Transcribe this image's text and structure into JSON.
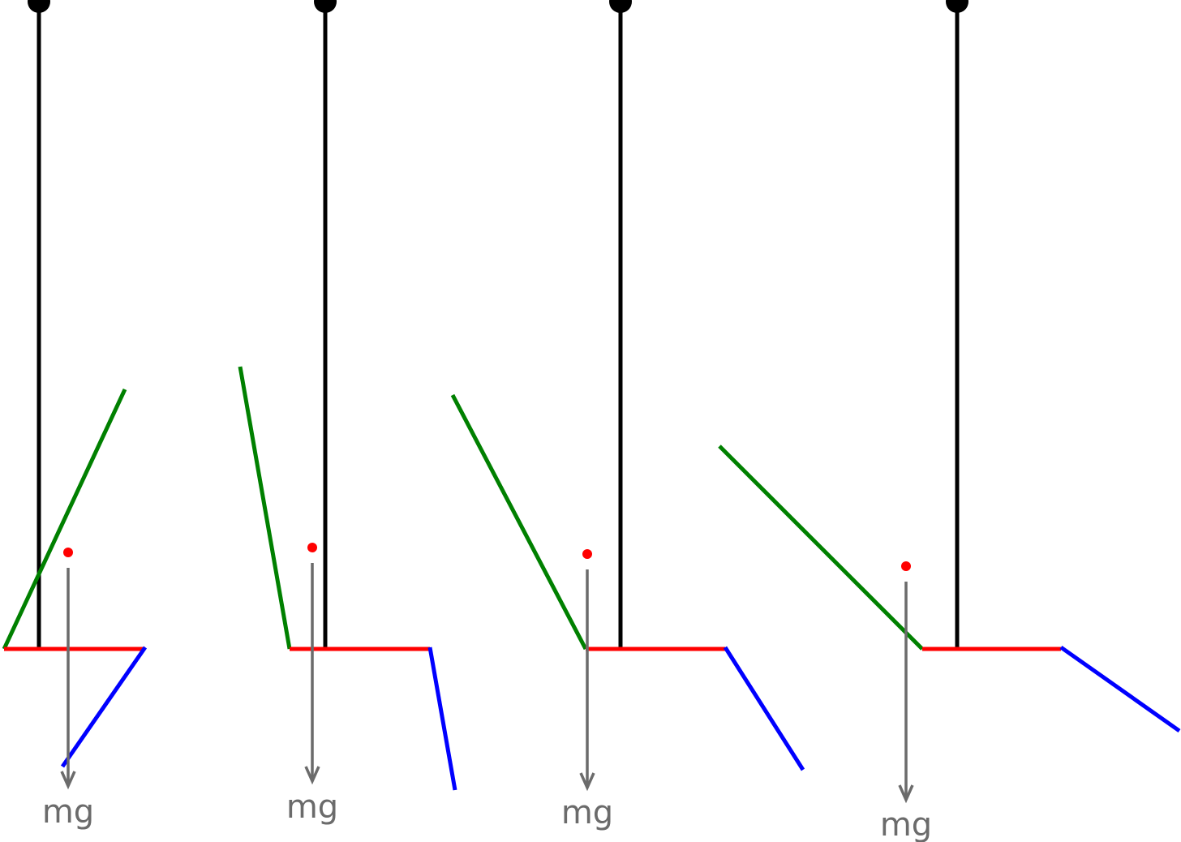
{
  "colors": {
    "string": "#000000",
    "body": "#ff0000",
    "left_arm": "#008000",
    "right_arm": "#0000ff",
    "center_of_mass": "#ff0000",
    "force": "#6b6b6b",
    "background": "#ffffff"
  },
  "panels": [
    {
      "force_label": "mg"
    },
    {
      "force_label": "mg"
    },
    {
      "force_label": "mg"
    },
    {
      "force_label": "mg"
    }
  ]
}
